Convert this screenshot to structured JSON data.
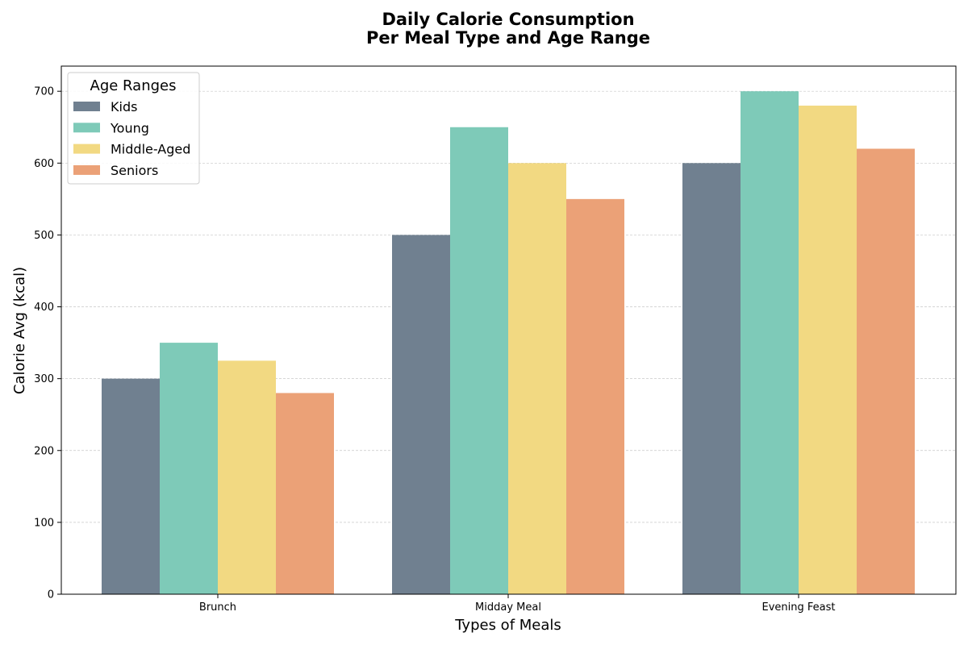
{
  "chart_data": {
    "type": "bar",
    "title_lines": [
      "Daily Calorie Consumption",
      "Per Meal Type and Age Range"
    ],
    "xlabel": "Types of Meals",
    "ylabel": "Calorie Avg (kcal)",
    "categories": [
      "Brunch",
      "Midday Meal",
      "Evening Feast"
    ],
    "ylim": [
      0,
      735
    ],
    "yticks": [
      0,
      100,
      200,
      300,
      400,
      500,
      600,
      700
    ],
    "grid": true,
    "legend": {
      "title": "Age Ranges",
      "position": "top-left"
    },
    "series": [
      {
        "name": "Kids",
        "color": "#708090",
        "values": [
          300,
          500,
          600
        ]
      },
      {
        "name": "Young",
        "color": "#7ecab8",
        "values": [
          350,
          650,
          700
        ]
      },
      {
        "name": "Middle-Aged",
        "color": "#f2d982",
        "values": [
          325,
          600,
          680
        ]
      },
      {
        "name": "Seniors",
        "color": "#eba177",
        "values": [
          280,
          550,
          620
        ]
      }
    ]
  }
}
